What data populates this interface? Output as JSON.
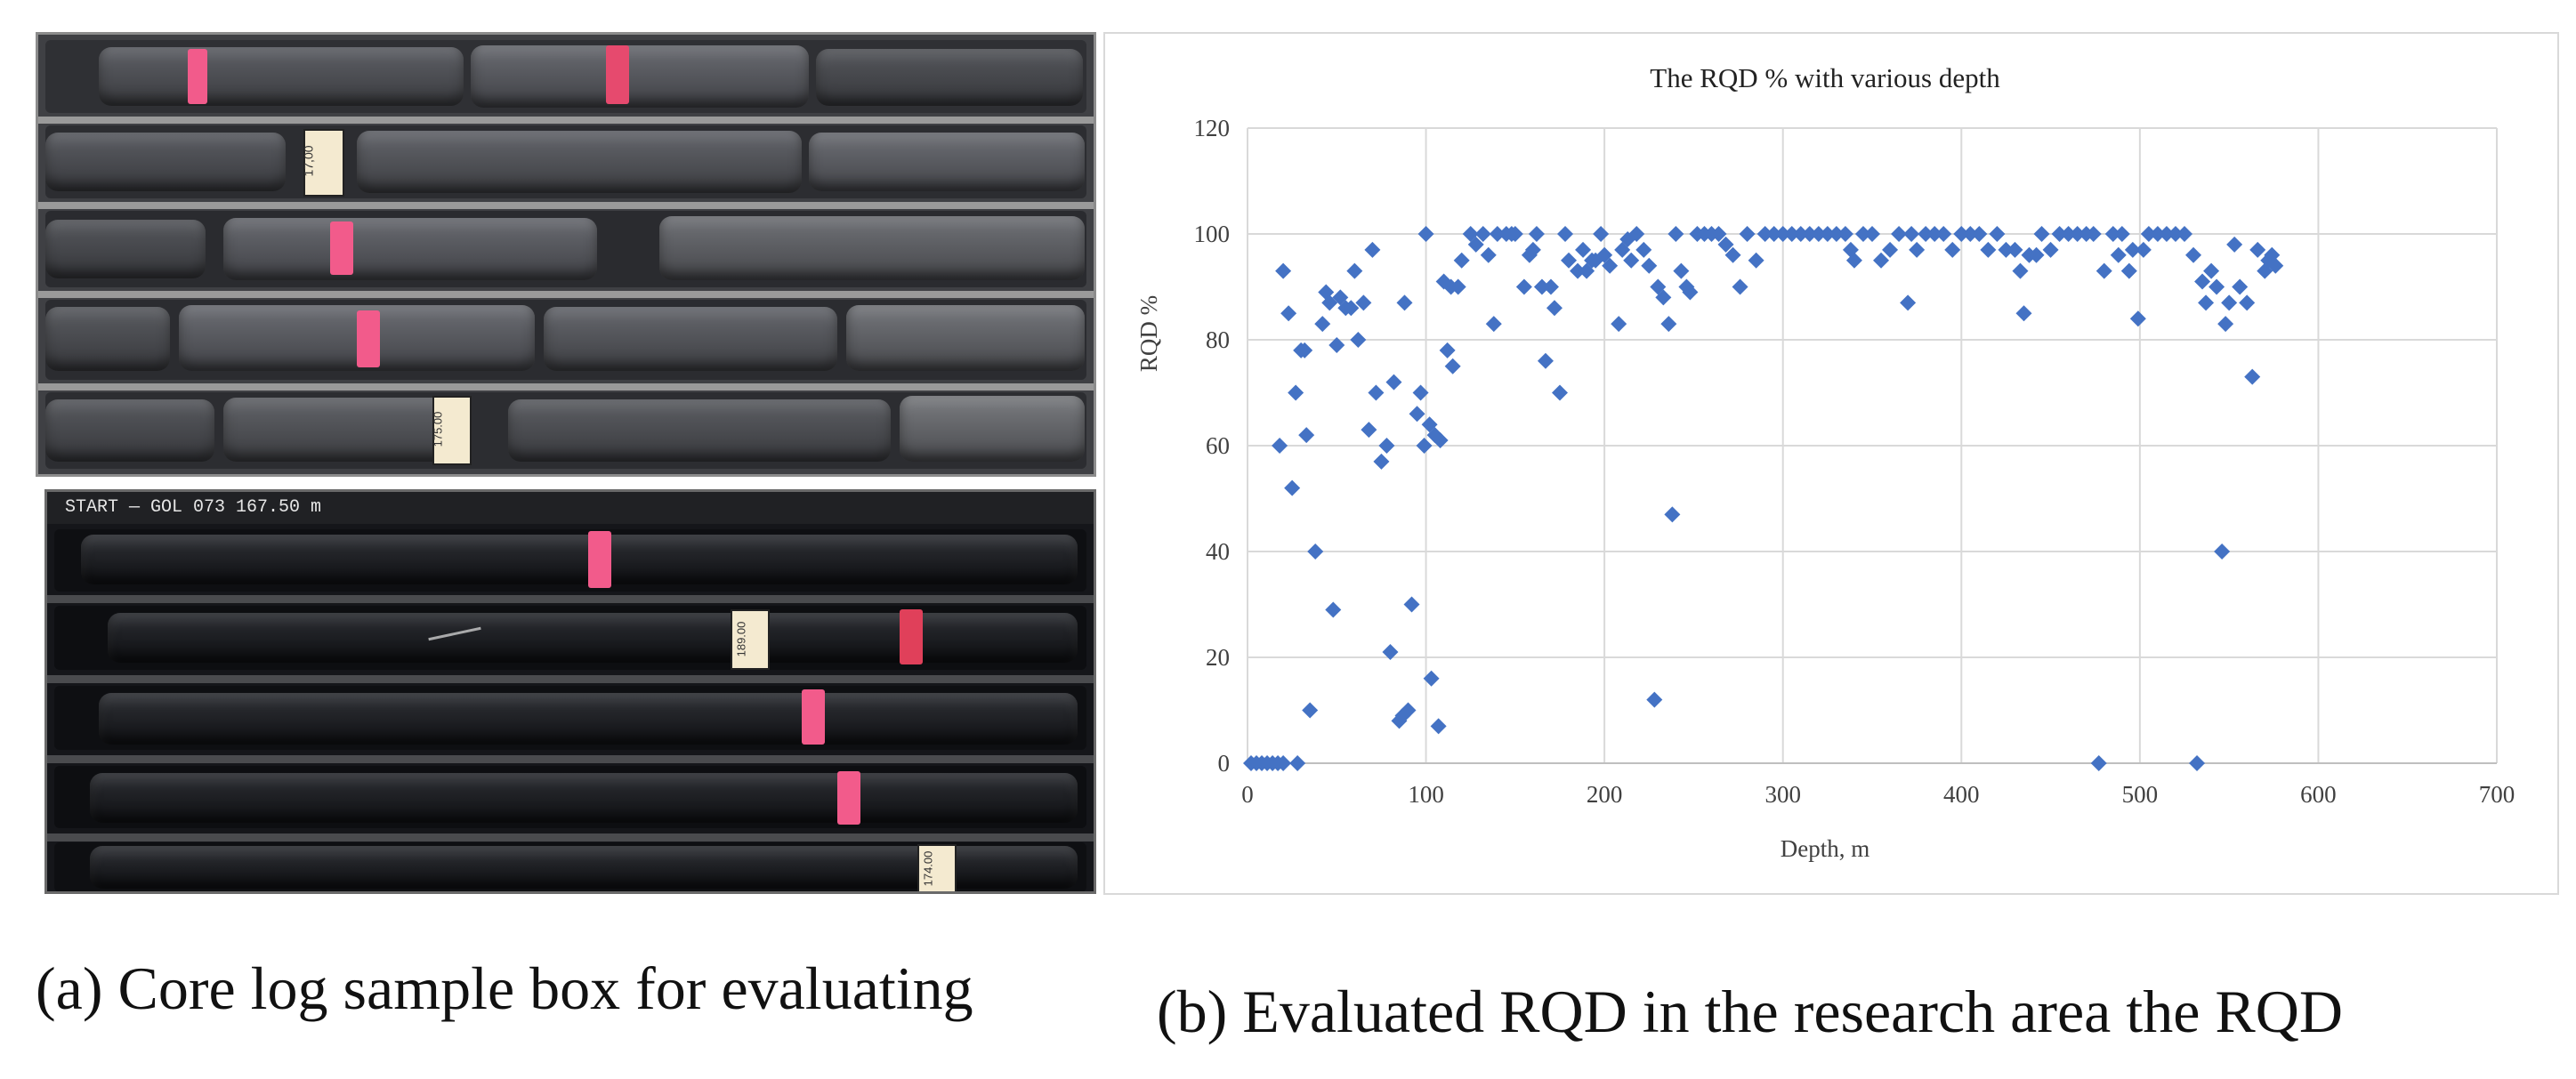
{
  "figure": {
    "caption_a": "(a) Core log sample box for evaluating",
    "caption_b": "(b) Evaluated RQD in the research area the RQD"
  },
  "photo_labels": {
    "top_card_1": "17,00",
    "top_card_2": "175.00",
    "bottom_header": "START — GOL 073  167.50 m",
    "bottom_card_1": "189.00",
    "bottom_card_2": "174.00"
  },
  "colors": {
    "marker": "#4472C4",
    "gridline": "#d9d9d9",
    "core_tag": "#f25b8b"
  },
  "chart_data": {
    "type": "scatter",
    "title": "The RQD % with various depth",
    "xlabel": "Depth, m",
    "ylabel": "RQD %",
    "xlim": [
      0,
      700
    ],
    "ylim": [
      0,
      120
    ],
    "xticks": [
      0,
      100,
      200,
      300,
      400,
      500,
      600,
      700
    ],
    "yticks": [
      0,
      20,
      40,
      60,
      80,
      100,
      120
    ],
    "grid": "major gridlines",
    "legend": "none",
    "marker": "diamond",
    "series": [
      {
        "points": [
          [
            2,
            0
          ],
          [
            5,
            0
          ],
          [
            8,
            0
          ],
          [
            11,
            0
          ],
          [
            14,
            0
          ],
          [
            17,
            0
          ],
          [
            20,
            0
          ],
          [
            28,
            0
          ],
          [
            18,
            60
          ],
          [
            20,
            93
          ],
          [
            23,
            85
          ],
          [
            25,
            52
          ],
          [
            27,
            70
          ],
          [
            30,
            78
          ],
          [
            32,
            78
          ],
          [
            33,
            62
          ],
          [
            35,
            10
          ],
          [
            38,
            40
          ],
          [
            42,
            83
          ],
          [
            44,
            89
          ],
          [
            46,
            87
          ],
          [
            48,
            29
          ],
          [
            50,
            79
          ],
          [
            52,
            88
          ],
          [
            55,
            86
          ],
          [
            58,
            86
          ],
          [
            60,
            93
          ],
          [
            62,
            80
          ],
          [
            65,
            87
          ],
          [
            68,
            63
          ],
          [
            70,
            97
          ],
          [
            72,
            70
          ],
          [
            75,
            57
          ],
          [
            78,
            60
          ],
          [
            80,
            21
          ],
          [
            82,
            72
          ],
          [
            85,
            8
          ],
          [
            87,
            9
          ],
          [
            88,
            87
          ],
          [
            90,
            10
          ],
          [
            92,
            30
          ],
          [
            95,
            66
          ],
          [
            97,
            70
          ],
          [
            99,
            60
          ],
          [
            100,
            100
          ],
          [
            102,
            64
          ],
          [
            103,
            16
          ],
          [
            105,
            62
          ],
          [
            107,
            7
          ],
          [
            108,
            61
          ],
          [
            110,
            91
          ],
          [
            112,
            78
          ],
          [
            114,
            90
          ],
          [
            115,
            75
          ],
          [
            118,
            90
          ],
          [
            120,
            95
          ],
          [
            125,
            100
          ],
          [
            128,
            98
          ],
          [
            132,
            100
          ],
          [
            135,
            96
          ],
          [
            138,
            83
          ],
          [
            140,
            100
          ],
          [
            145,
            100
          ],
          [
            148,
            100
          ],
          [
            150,
            100
          ],
          [
            155,
            90
          ],
          [
            158,
            96
          ],
          [
            160,
            97
          ],
          [
            162,
            100
          ],
          [
            165,
            90
          ],
          [
            167,
            76
          ],
          [
            170,
            90
          ],
          [
            172,
            86
          ],
          [
            175,
            70
          ],
          [
            178,
            100
          ],
          [
            180,
            95
          ],
          [
            185,
            93
          ],
          [
            188,
            97
          ],
          [
            190,
            93
          ],
          [
            193,
            95
          ],
          [
            195,
            95
          ],
          [
            198,
            100
          ],
          [
            200,
            96
          ],
          [
            203,
            94
          ],
          [
            208,
            83
          ],
          [
            210,
            97
          ],
          [
            213,
            99
          ],
          [
            215,
            95
          ],
          [
            218,
            100
          ],
          [
            222,
            97
          ],
          [
            225,
            94
          ],
          [
            228,
            12
          ],
          [
            230,
            90
          ],
          [
            233,
            88
          ],
          [
            236,
            83
          ],
          [
            238,
            47
          ],
          [
            240,
            100
          ],
          [
            243,
            93
          ],
          [
            246,
            90
          ],
          [
            248,
            89
          ],
          [
            252,
            100
          ],
          [
            256,
            100
          ],
          [
            260,
            100
          ],
          [
            264,
            100
          ],
          [
            268,
            98
          ],
          [
            272,
            96
          ],
          [
            276,
            90
          ],
          [
            280,
            100
          ],
          [
            285,
            95
          ],
          [
            290,
            100
          ],
          [
            295,
            100
          ],
          [
            300,
            100
          ],
          [
            305,
            100
          ],
          [
            310,
            100
          ],
          [
            315,
            100
          ],
          [
            320,
            100
          ],
          [
            325,
            100
          ],
          [
            330,
            100
          ],
          [
            335,
            100
          ],
          [
            338,
            97
          ],
          [
            340,
            95
          ],
          [
            345,
            100
          ],
          [
            350,
            100
          ],
          [
            355,
            95
          ],
          [
            360,
            97
          ],
          [
            365,
            100
          ],
          [
            370,
            87
          ],
          [
            372,
            100
          ],
          [
            375,
            97
          ],
          [
            380,
            100
          ],
          [
            385,
            100
          ],
          [
            390,
            100
          ],
          [
            395,
            97
          ],
          [
            400,
            100
          ],
          [
            405,
            100
          ],
          [
            410,
            100
          ],
          [
            415,
            97
          ],
          [
            420,
            100
          ],
          [
            425,
            97
          ],
          [
            430,
            97
          ],
          [
            433,
            93
          ],
          [
            435,
            85
          ],
          [
            438,
            96
          ],
          [
            442,
            96
          ],
          [
            445,
            100
          ],
          [
            450,
            97
          ],
          [
            455,
            100
          ],
          [
            460,
            100
          ],
          [
            465,
            100
          ],
          [
            470,
            100
          ],
          [
            474,
            100
          ],
          [
            477,
            0
          ],
          [
            480,
            93
          ],
          [
            485,
            100
          ],
          [
            488,
            96
          ],
          [
            490,
            100
          ],
          [
            494,
            93
          ],
          [
            496,
            97
          ],
          [
            499,
            84
          ],
          [
            502,
            97
          ],
          [
            505,
            100
          ],
          [
            510,
            100
          ],
          [
            515,
            100
          ],
          [
            520,
            100
          ],
          [
            525,
            100
          ],
          [
            530,
            96
          ],
          [
            532,
            0
          ],
          [
            535,
            91
          ],
          [
            537,
            87
          ],
          [
            540,
            93
          ],
          [
            543,
            90
          ],
          [
            546,
            40
          ],
          [
            548,
            83
          ],
          [
            550,
            87
          ],
          [
            553,
            98
          ],
          [
            556,
            90
          ],
          [
            560,
            87
          ],
          [
            563,
            73
          ],
          [
            566,
            97
          ],
          [
            570,
            93
          ],
          [
            572,
            95
          ],
          [
            574,
            96
          ],
          [
            576,
            94
          ]
        ]
      }
    ]
  }
}
